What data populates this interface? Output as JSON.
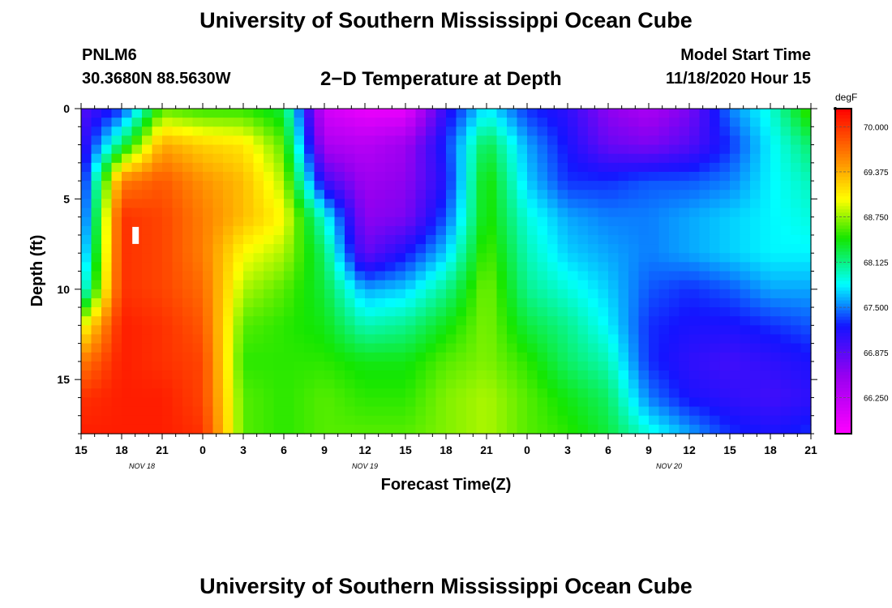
{
  "header": {
    "title": "University of Southern Mississippi Ocean Cube",
    "station_id": "PNLM6",
    "station_coords": "30.3680N 88.5630W",
    "plot_title": "2−D Temperature at Depth",
    "model_start_label": "Model Start Time",
    "model_start_value": "11/18/2020 Hour 15"
  },
  "footer": {
    "title": "University of Southern Mississippi Ocean Cube"
  },
  "chart_data": {
    "type": "heatmap",
    "title": "2−D Temperature at Depth",
    "xlabel": "Forecast Time(Z)",
    "ylabel": "Depth (ft)",
    "x_tick_labels": [
      "15",
      "18",
      "21",
      "0",
      "3",
      "6",
      "9",
      "12",
      "15",
      "18",
      "21",
      "0",
      "3",
      "6",
      "9",
      "12",
      "15",
      "18",
      "21"
    ],
    "date_labels": [
      {
        "label": "NOV  18",
        "at_tick": 1.5
      },
      {
        "label": "NOV  19",
        "at_tick": 7
      },
      {
        "label": "NOV  20",
        "at_tick": 14.5
      }
    ],
    "x_range_hours": [
      0,
      54
    ],
    "y_range_ft": [
      0,
      18
    ],
    "y_ticks": [
      0,
      5,
      10,
      15
    ],
    "colorbar": {
      "unit": "degF",
      "min": 65.75,
      "max": 70.25,
      "tick_values": [
        70.0,
        69.375,
        68.75,
        68.125,
        67.5,
        66.875,
        66.25
      ],
      "tick_labels": [
        "70.000",
        "69.375",
        "68.750",
        "68.125",
        "67.500",
        "66.875",
        "66.250"
      ]
    },
    "profile_depths_ft": [
      0,
      2,
      4,
      6,
      8,
      10,
      12,
      14,
      16,
      18
    ],
    "profile_hours": [
      0,
      3,
      6,
      9,
      12,
      15,
      18,
      21,
      24,
      27,
      30,
      33,
      36,
      39,
      42,
      45,
      48,
      51,
      54
    ],
    "temperature_degF": [
      [
        66.9,
        67.3,
        68.6,
        68.5,
        68.5,
        68.3,
        66.1,
        65.9,
        65.9,
        67.1,
        67.8,
        67.3,
        67.1,
        66.6,
        66.4,
        66.7,
        67.5,
        67.9,
        68.6
      ],
      [
        67.0,
        68.2,
        69.4,
        69.2,
        69.1,
        68.6,
        66.4,
        66.3,
        66.5,
        67.3,
        68.3,
        67.6,
        67.2,
        66.8,
        66.7,
        66.9,
        67.3,
        67.8,
        68.2
      ],
      [
        67.1,
        69.6,
        69.8,
        69.5,
        69.3,
        68.8,
        67.0,
        66.5,
        66.6,
        67.2,
        68.5,
        67.7,
        67.3,
        67.3,
        67.4,
        67.4,
        67.5,
        67.8,
        68.0
      ],
      [
        67.2,
        70.0,
        69.9,
        69.6,
        69.3,
        69.0,
        67.9,
        66.6,
        66.7,
        67.4,
        68.5,
        67.9,
        67.6,
        67.5,
        67.5,
        67.6,
        67.7,
        67.8,
        67.9
      ],
      [
        67.4,
        70.0,
        69.9,
        69.6,
        69.0,
        68.8,
        68.2,
        66.8,
        67.2,
        67.7,
        68.6,
        68.0,
        67.7,
        67.6,
        67.5,
        67.6,
        67.7,
        67.8,
        67.8
      ],
      [
        67.7,
        70.0,
        69.9,
        69.7,
        68.8,
        68.6,
        68.3,
        67.6,
        67.7,
        68.1,
        68.7,
        68.1,
        67.9,
        67.7,
        67.4,
        67.3,
        67.4,
        67.6,
        67.6
      ],
      [
        68.9,
        70.1,
        70.0,
        69.8,
        68.6,
        68.5,
        68.4,
        68.0,
        68.1,
        68.4,
        68.7,
        68.3,
        68.1,
        67.8,
        67.3,
        67.2,
        67.2,
        67.3,
        67.4
      ],
      [
        69.6,
        70.1,
        70.0,
        69.9,
        68.5,
        68.5,
        68.5,
        68.4,
        68.4,
        68.6,
        68.7,
        68.5,
        68.2,
        68.0,
        67.3,
        67.1,
        67.0,
        67.1,
        67.2
      ],
      [
        70.0,
        70.1,
        70.1,
        69.9,
        68.6,
        68.5,
        68.6,
        68.5,
        68.5,
        68.7,
        68.8,
        68.6,
        68.4,
        68.2,
        67.5,
        67.2,
        67.1,
        67.0,
        67.1
      ],
      [
        70.1,
        70.1,
        70.1,
        70.0,
        68.6,
        68.5,
        68.6,
        68.6,
        68.6,
        68.7,
        68.8,
        68.6,
        68.5,
        68.3,
        67.9,
        67.6,
        67.3,
        67.2,
        67.3
      ]
    ],
    "missing_cells": [
      {
        "hour": 4.0,
        "depth_ft": 7.0
      }
    ]
  },
  "colors": {
    "missing": "#ffffff",
    "frame": "#000000"
  }
}
